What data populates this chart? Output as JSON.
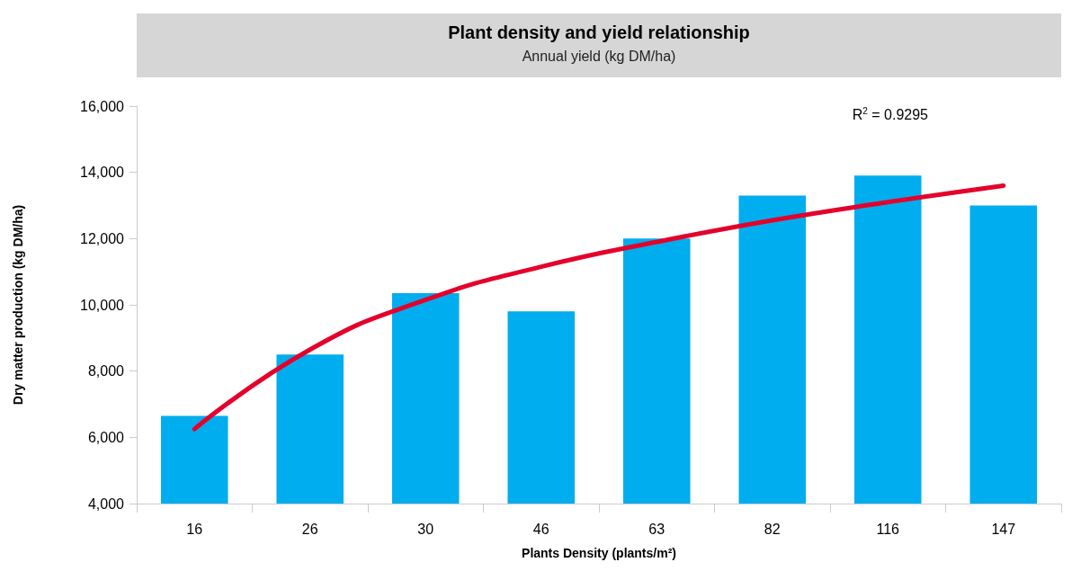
{
  "chart_data": {
    "type": "bar",
    "title": "Plant density and yield relationship",
    "subtitle": "Annual yield (kg DM/ha)",
    "xlabel": "Plants Density (plants/m²)",
    "ylabel": "Dry matter production (kg DM/ha)",
    "categories": [
      "16",
      "26",
      "30",
      "46",
      "63",
      "82",
      "116",
      "147"
    ],
    "series": [
      {
        "color": "#00adee",
        "values": [
          6650,
          8500,
          10350,
          9800,
          12000,
          13300,
          13900,
          13000
        ]
      },
      {
        "type": "line",
        "color": "#e4002b",
        "x": [
          "16",
          "26",
          "30",
          "46",
          "63",
          "82",
          "116",
          "147"
        ],
        "values": [
          6250,
          8650,
          10150,
          11150,
          11900,
          12550,
          13100,
          13600
        ]
      }
    ],
    "ylim": [
      4000,
      16000
    ],
    "yticks": [
      {
        "value": 4000,
        "label": "4,000"
      },
      {
        "value": 6000,
        "label": "6,000"
      },
      {
        "value": 8000,
        "label": "8,000"
      },
      {
        "value": 10000,
        "label": "10,000"
      },
      {
        "value": 12000,
        "label": "12,000"
      },
      {
        "value": 14000,
        "label": "14,000"
      },
      {
        "value": 16000,
        "label": "16,000"
      }
    ],
    "annotations": [
      "R$^{2}$ = 0.9295"
    ],
    "grid": false,
    "marker": "none",
    "line_style": "solid"
  }
}
